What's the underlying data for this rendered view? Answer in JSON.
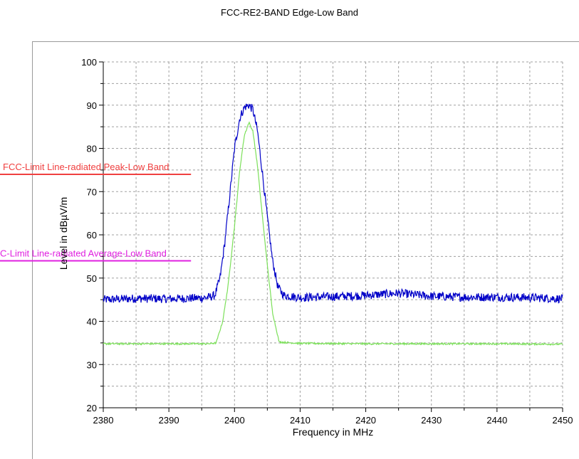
{
  "chart_data": {
    "type": "line",
    "title": "FCC-RE2-BAND Edge-Low Band",
    "xlabel": "Frequency in MHz",
    "ylabel": "Level in dBµV/m",
    "xlim": [
      2380,
      2450
    ],
    "ylim": [
      20,
      100
    ],
    "x_ticks": [
      2380,
      2390,
      2400,
      2410,
      2420,
      2430,
      2440,
      2450
    ],
    "y_ticks": [
      20,
      30,
      40,
      50,
      60,
      70,
      80,
      90,
      100
    ],
    "grid": true,
    "series": [
      {
        "color": "#0000c8",
        "noise": 1.0,
        "x": [
          2380,
          2385,
          2390,
          2395,
          2396,
          2397,
          2397.8,
          2398.5,
          2399.2,
          2400,
          2400.8,
          2401.5,
          2402.2,
          2402.8,
          2403.5,
          2404.2,
          2405,
          2405.8,
          2406.6,
          2407.5,
          2410,
          2415,
          2420,
          2425,
          2430,
          2435,
          2440,
          2445,
          2450
        ],
        "values": [
          45,
          45.3,
          45.2,
          45.4,
          45.5,
          46,
          50,
          58,
          68,
          80,
          87,
          89.5,
          90,
          89,
          84,
          75,
          64,
          54,
          48,
          46,
          45.5,
          45.7,
          46,
          46.5,
          45.8,
          45.6,
          45.6,
          45.5,
          45.2
        ]
      },
      {
        "color": "#7ce05a",
        "noise": 0.2,
        "x": [
          2380,
          2390,
          2396,
          2397.2,
          2398.2,
          2399,
          2400,
          2400.8,
          2401.5,
          2402.2,
          2402.8,
          2403.5,
          2404.2,
          2405,
          2405.8,
          2406.8,
          2410,
          2420,
          2430,
          2440,
          2450
        ],
        "values": [
          34.8,
          34.8,
          34.8,
          35,
          40,
          48,
          62,
          75,
          83,
          86,
          84,
          76,
          65,
          53,
          42,
          35.2,
          34.9,
          34.8,
          34.8,
          34.8,
          34.7
        ]
      }
    ],
    "limits": [
      {
        "name": "FCC-Limit Line-radiated Peak-Low Band",
        "value": 74,
        "x_range": [
          2380,
          2395
        ],
        "color": "#f04040"
      },
      {
        "name": "C-Limit Line-radiated Average-Low Band",
        "value": 54,
        "x_range": [
          2380,
          2395
        ],
        "color": "#e020e0"
      }
    ]
  }
}
